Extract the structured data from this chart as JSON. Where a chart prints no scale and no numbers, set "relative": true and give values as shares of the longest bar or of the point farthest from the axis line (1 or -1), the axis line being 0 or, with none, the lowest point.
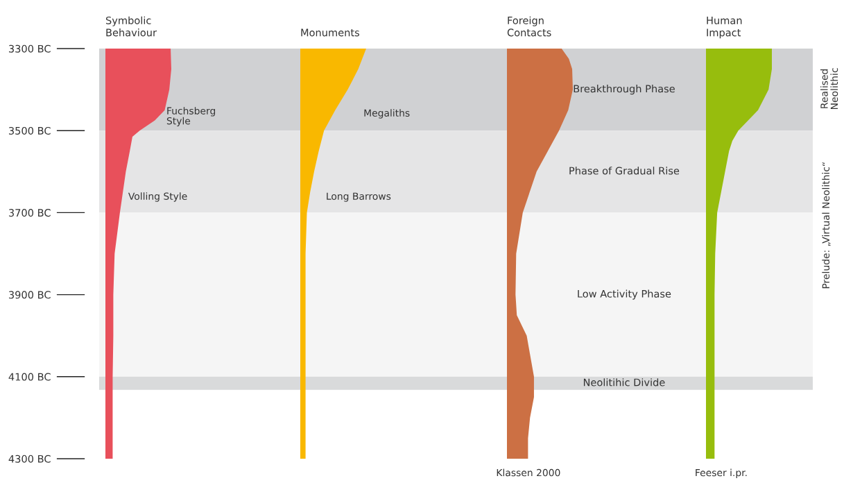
{
  "chart_data": [
    {
      "type": "area",
      "orientation": "horizontal",
      "relative": true,
      "title": "Symbolic\nBehaviour",
      "tick_labels": "y",
      "ylim": [
        -4300,
        -3300
      ],
      "yticks": [
        {
          "value": -3300,
          "label": "3300 BC"
        },
        {
          "value": -3500,
          "label": "3500 BC"
        },
        {
          "value": -3700,
          "label": "3700 BC"
        },
        {
          "value": -3900,
          "label": "3900 BC"
        },
        {
          "value": -4100,
          "label": "4100 BC"
        },
        {
          "value": -4300,
          "label": "4300 BC"
        }
      ],
      "series": [
        {
          "color": "#e8505b",
          "x": [
            -3300,
            -3350,
            -3400,
            -3450,
            -3475,
            -3500,
            -3515,
            -3550,
            -3600,
            -3700,
            -3800,
            -3900,
            -4000,
            -4100,
            -4200,
            -4300
          ],
          "values": [
            0.99,
            1.0,
            0.97,
            0.9,
            0.75,
            0.52,
            0.41,
            0.37,
            0.31,
            0.22,
            0.14,
            0.12,
            0.12,
            0.11,
            0.11,
            0.11
          ]
        }
      ],
      "bands": [
        {
          "axis": "y",
          "from": -3500,
          "to": -3300,
          "color": "#d0d1d3"
        },
        {
          "axis": "y",
          "from": -3700,
          "to": -3500,
          "color": "#e5e5e6"
        },
        {
          "axis": "y",
          "from": -4100,
          "to": -3700,
          "color": "#f5f5f5"
        },
        {
          "axis": "y",
          "from": -4132,
          "to": -4100,
          "color": "#d9dadb"
        }
      ],
      "annotations": [
        "Fuchsberg\nStyle",
        "Volling Style"
      ]
    },
    {
      "type": "area",
      "orientation": "horizontal",
      "relative": true,
      "title": "Monuments",
      "tick_labels": false,
      "ylim": [
        -4300,
        -3300
      ],
      "series": [
        {
          "color": "#f9b800",
          "x": [
            -3300,
            -3350,
            -3400,
            -3450,
            -3500,
            -3550,
            -3600,
            -3650,
            -3700,
            -3750,
            -3800,
            -4300
          ],
          "values": [
            1.0,
            0.88,
            0.72,
            0.53,
            0.36,
            0.28,
            0.21,
            0.15,
            0.1,
            0.09,
            0.08,
            0.08
          ]
        }
      ],
      "bands": [
        {
          "axis": "y",
          "from": -3500,
          "to": -3300,
          "color": "#d0d1d3"
        },
        {
          "axis": "y",
          "from": -3700,
          "to": -3500,
          "color": "#e5e5e6"
        },
        {
          "axis": "y",
          "from": -4100,
          "to": -3700,
          "color": "#f5f5f5"
        },
        {
          "axis": "y",
          "from": -4132,
          "to": -4100,
          "color": "#d9dadb"
        }
      ],
      "annotations": [
        "Megaliths",
        "Long Barrows"
      ]
    },
    {
      "type": "area",
      "orientation": "horizontal",
      "relative": true,
      "title": "Foreign\nContacts",
      "tick_labels": false,
      "ylim": [
        -4300,
        -3300
      ],
      "series": [
        {
          "color": "#cc7044",
          "x": [
            -3300,
            -3325,
            -3350,
            -3400,
            -3450,
            -3500,
            -3550,
            -3600,
            -3700,
            -3800,
            -3900,
            -3950,
            -4000,
            -4100,
            -4150,
            -4200,
            -4250,
            -4300
          ],
          "values": [
            0.83,
            0.94,
            0.99,
            1.0,
            0.93,
            0.79,
            0.62,
            0.45,
            0.24,
            0.14,
            0.13,
            0.15,
            0.3,
            0.41,
            0.41,
            0.35,
            0.32,
            0.32
          ]
        }
      ],
      "bands": [
        {
          "axis": "y",
          "from": -3500,
          "to": -3300,
          "color": "#d0d1d3",
          "label": "Breakthrough Phase"
        },
        {
          "axis": "y",
          "from": -3700,
          "to": -3500,
          "color": "#e5e5e6",
          "label": "Phase of Gradual Rise"
        },
        {
          "axis": "y",
          "from": -4100,
          "to": -3700,
          "color": "#f5f5f5",
          "label": "Low Activity Phase"
        },
        {
          "axis": "y",
          "from": -4132,
          "to": -4100,
          "color": "#d9dadb",
          "label": "Neolitihic Divide"
        }
      ],
      "annotations": [
        "Klassen 2000"
      ]
    },
    {
      "type": "area",
      "orientation": "horizontal",
      "relative": true,
      "title": "Human\nImpact",
      "tick_labels": false,
      "ylim": [
        -4300,
        -3300
      ],
      "series": [
        {
          "color": "#97bd0d",
          "x": [
            -3300,
            -3350,
            -3400,
            -3450,
            -3500,
            -3525,
            -3550,
            -3600,
            -3700,
            -3800,
            -3900,
            -4300
          ],
          "values": [
            1.0,
            1.0,
            0.95,
            0.79,
            0.49,
            0.4,
            0.35,
            0.29,
            0.17,
            0.14,
            0.13,
            0.13
          ]
        }
      ],
      "bands": [
        {
          "axis": "y",
          "from": -3500,
          "to": -3300,
          "color": "#d0d1d3"
        },
        {
          "axis": "y",
          "from": -3700,
          "to": -3500,
          "color": "#e5e5e6"
        },
        {
          "axis": "y",
          "from": -4100,
          "to": -3700,
          "color": "#f5f5f5"
        },
        {
          "axis": "y",
          "from": -4132,
          "to": -4100,
          "color": "#d9dadb"
        }
      ],
      "annotations": [
        "Feeser i.pr.",
        "Realised\nNeolithic",
        "Prelude: „Virtual Neolithic“"
      ]
    }
  ]
}
